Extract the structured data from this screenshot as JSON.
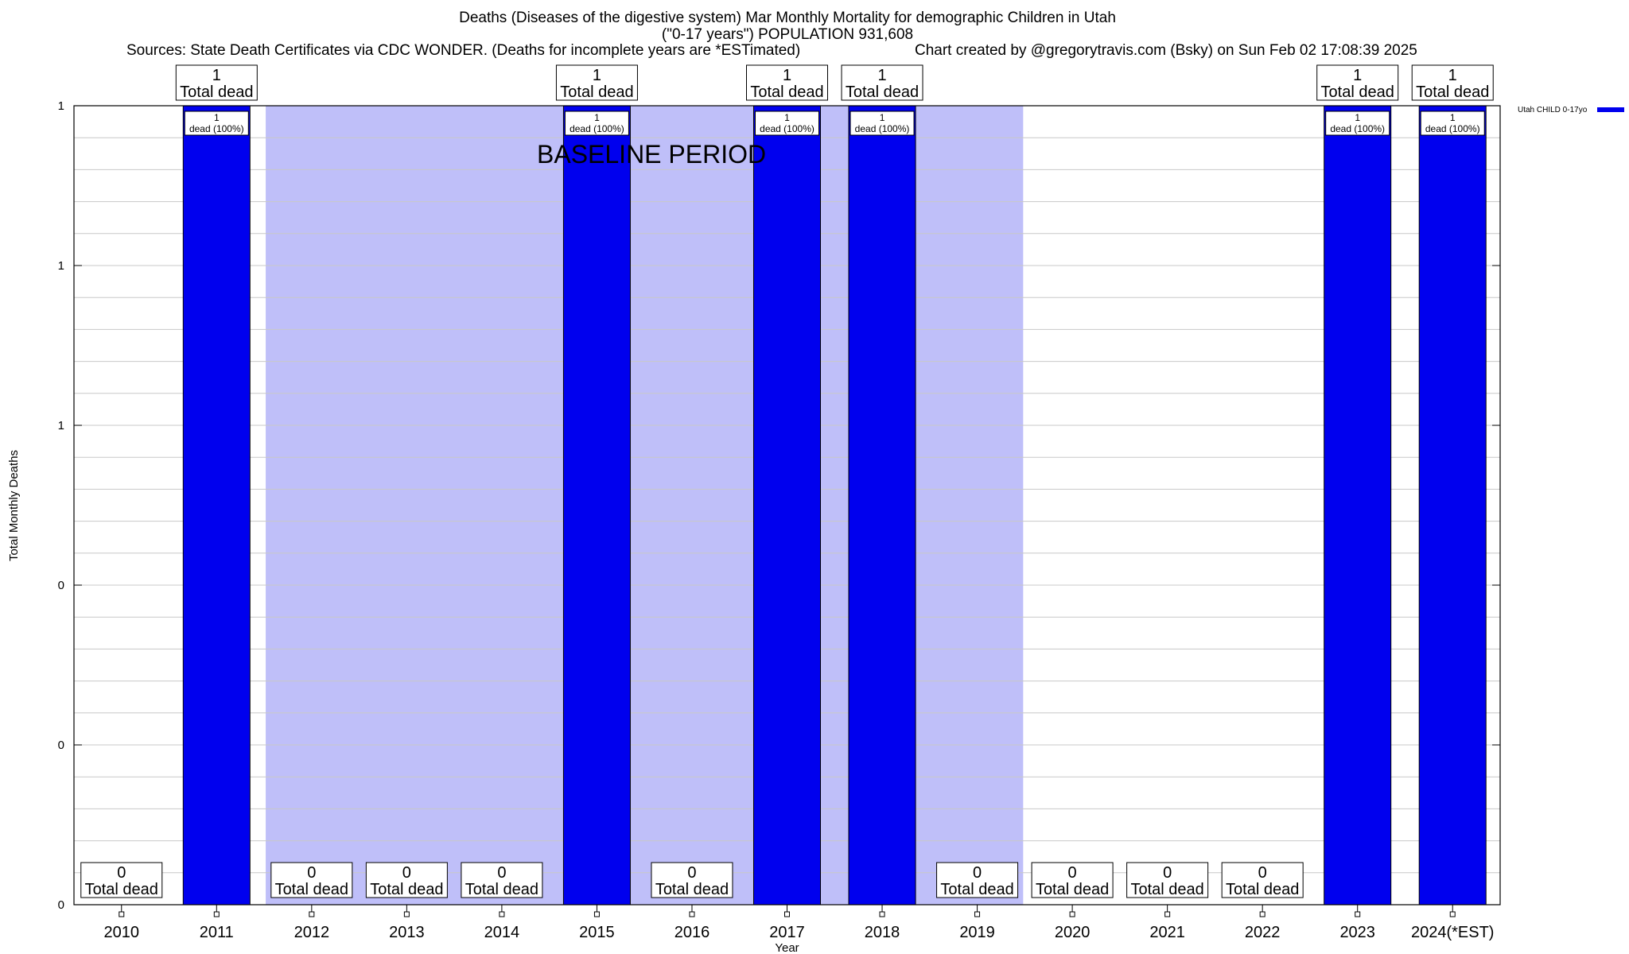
{
  "chart_data": {
    "type": "bar",
    "title": "Deaths (Diseases of the digestive system) Mar Monthly Mortality for demographic Children in Utah",
    "subtitle": "(\"0-17 years\") POPULATION 931,608",
    "sources": "Sources: State Death Certificates via CDC WONDER. (Deaths for incomplete years are *ESTimated)",
    "credit": "Chart created by @gregorytravis.com (Bsky) on Sun Feb 02 17:08:39 2025",
    "xlabel": "Year",
    "ylabel": "Total Monthly Deaths",
    "categories": [
      "2010",
      "2011",
      "2012",
      "2013",
      "2014",
      "2015",
      "2016",
      "2017",
      "2018",
      "2019",
      "2020",
      "2021",
      "2022",
      "2023",
      "2024(*EST)"
    ],
    "series": [
      {
        "name": "Utah CHILD 0-17yo",
        "color": "#0000ee",
        "values": [
          0,
          1,
          0,
          0,
          0,
          1,
          0,
          1,
          1,
          0,
          0,
          0,
          0,
          1,
          1
        ]
      }
    ],
    "ylim": [
      0,
      1
    ],
    "ytick_labels": [
      "0",
      "0",
      "0",
      "1",
      "1",
      "1"
    ],
    "total_label": "Total dead",
    "inner_label": "dead (100%)",
    "baseline": {
      "label": "BASELINE PERIOD",
      "start": "2012",
      "end": "2019",
      "color": "#bfbff9"
    },
    "legend_position": "top-right",
    "grid": true
  }
}
